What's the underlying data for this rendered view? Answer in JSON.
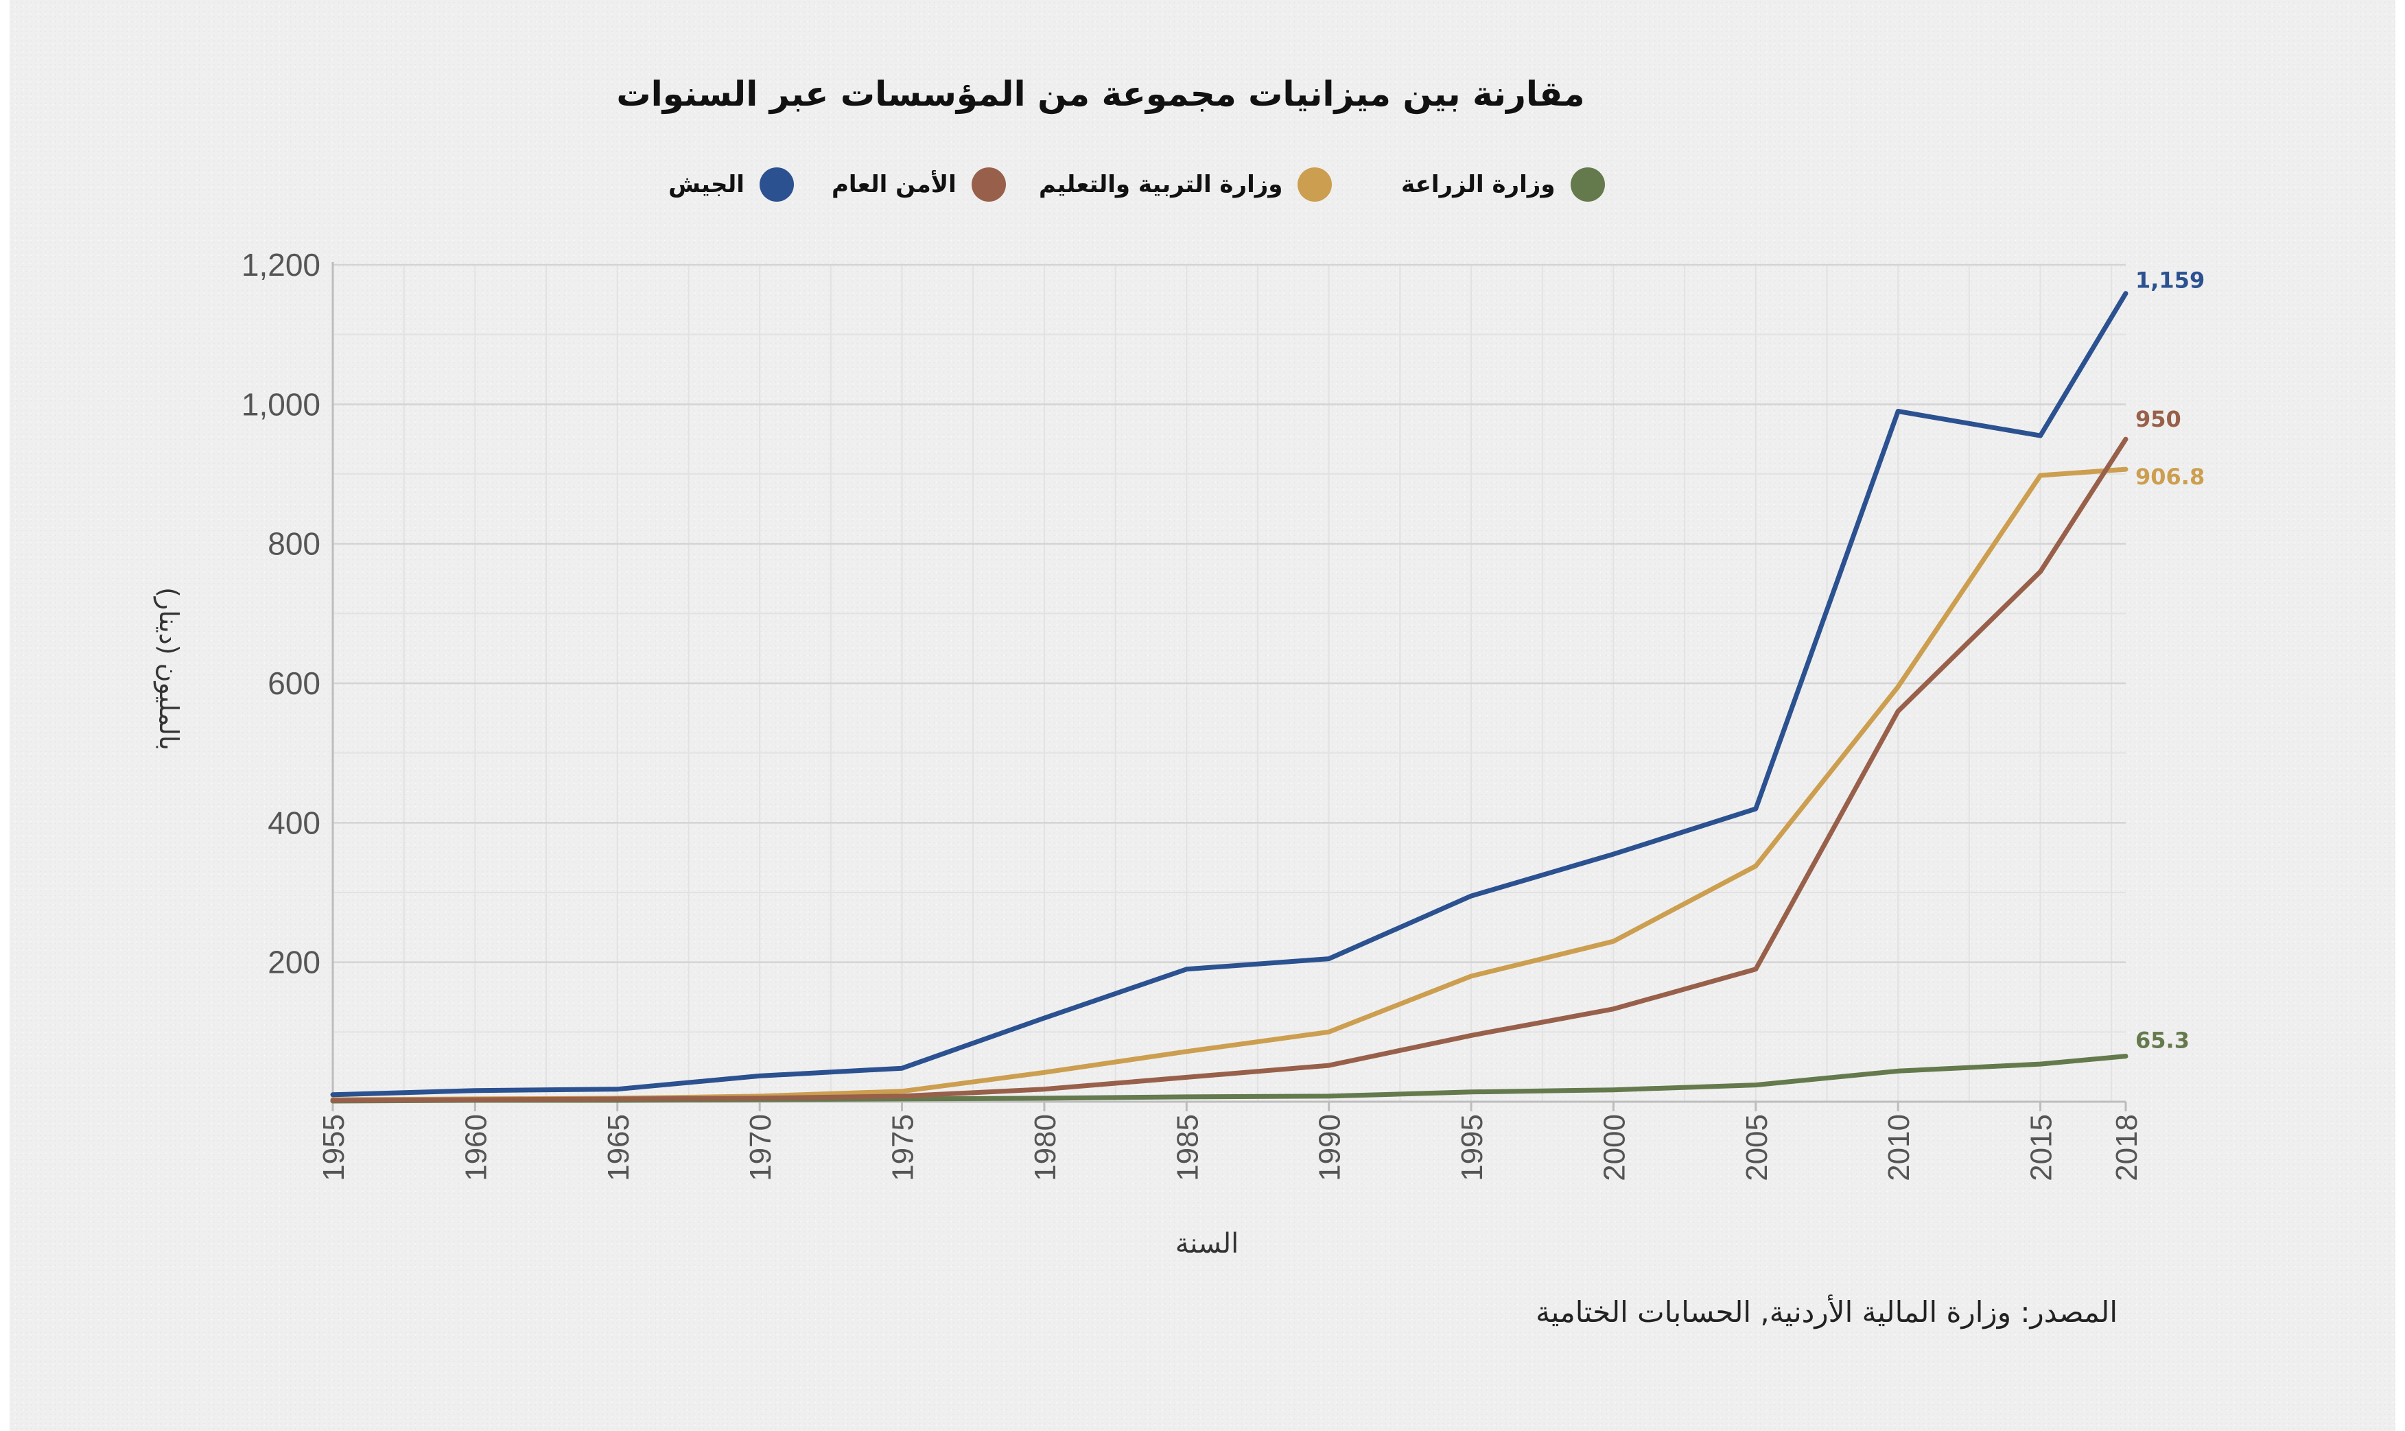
{
  "chart_data": {
    "type": "line",
    "title": "مقارنة بين ميزانيات مجموعة من المؤسسات عبر السنوات",
    "xlabel": "السنة",
    "ylabel": "بالمليون (دينار)",
    "source": "المصدر: وزارة المالية الأردنية, الحسابات الختامية",
    "x": [
      1955,
      1960,
      1965,
      1970,
      1975,
      1980,
      1985,
      1990,
      1995,
      2000,
      2005,
      2010,
      2015,
      2018
    ],
    "x_tick_labels": [
      "1955",
      "1960",
      "1965",
      "1970",
      "1975",
      "1980",
      "1985",
      "1990",
      "1995",
      "2000",
      "2005",
      "2010",
      "2015",
      "2018"
    ],
    "xlim": [
      1955,
      2018
    ],
    "ylim": [
      0,
      1200
    ],
    "y_ticks": [
      200,
      400,
      600,
      800,
      1000,
      1200
    ],
    "y_tick_labels": [
      "200",
      "400",
      "600",
      "800",
      "1,000",
      "1,200"
    ],
    "grid": true,
    "legend_position": "top",
    "series": [
      {
        "name": "الجيش",
        "color": "#2b5190",
        "values": [
          10,
          16,
          18,
          37,
          48,
          120,
          190,
          205,
          295,
          355,
          420,
          990,
          955,
          1159
        ],
        "end_label": "1,159"
      },
      {
        "name": "الأمن العام",
        "color": "#98604a",
        "values": [
          2,
          3,
          4,
          5,
          8,
          18,
          35,
          52,
          95,
          133,
          190,
          560,
          760,
          950
        ],
        "end_label": "950"
      },
      {
        "name": "وزارة التربية والتعليم",
        "color": "#cc9e4f",
        "values": [
          3,
          4,
          5,
          8,
          15,
          42,
          72,
          100,
          180,
          230,
          338,
          595,
          898,
          906.8
        ],
        "end_label": "906.8"
      },
      {
        "name": "وزارة الزراعة",
        "color": "#647a4d",
        "values": [
          1,
          2,
          2,
          3,
          4,
          5,
          7,
          8,
          14,
          17,
          24,
          44,
          54,
          65.3
        ],
        "end_label": "65.3"
      }
    ]
  }
}
